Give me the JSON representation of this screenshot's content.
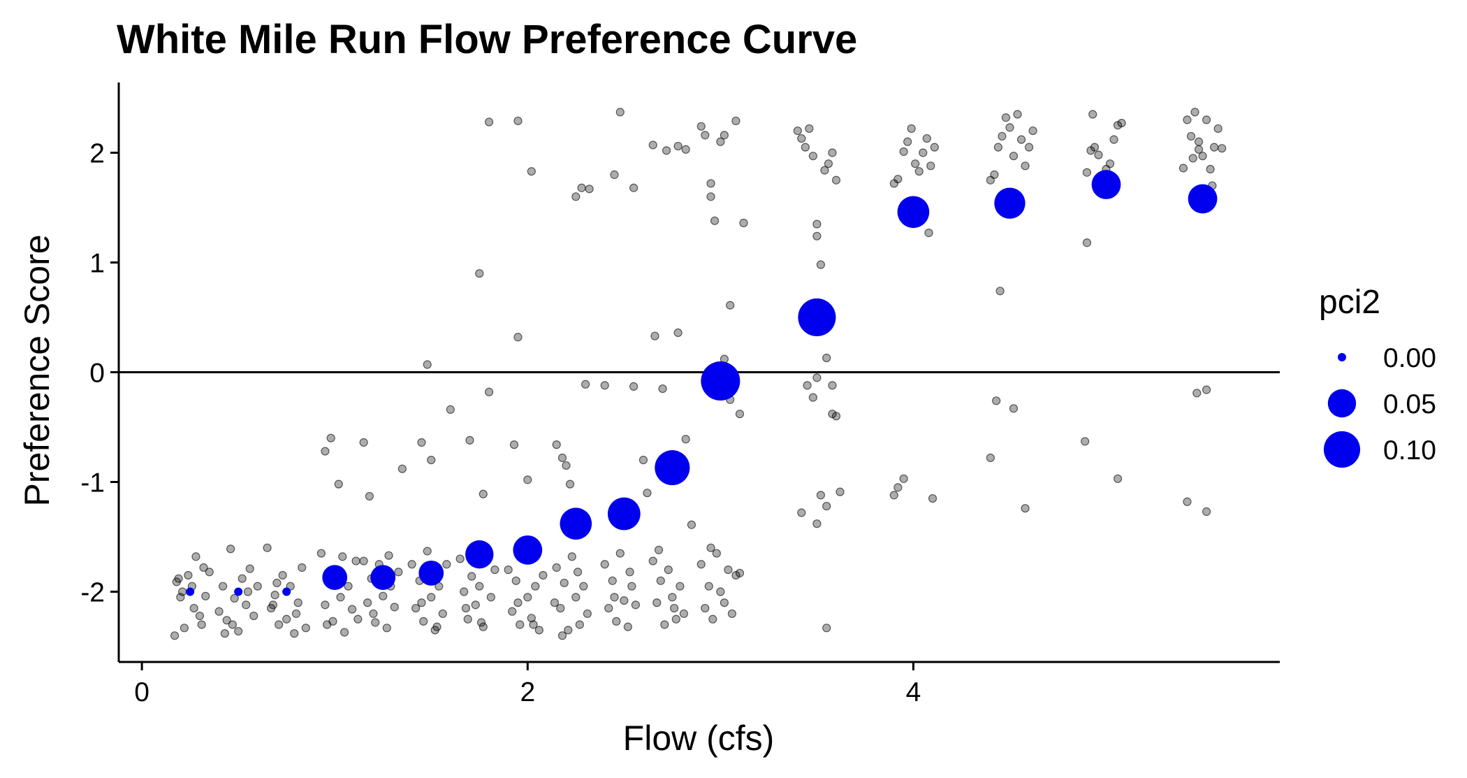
{
  "chart_data": {
    "type": "scatter",
    "title": "White Mile Run Flow Preference Curve",
    "xlabel": "Flow (cfs)",
    "ylabel": "Preference Score",
    "xlim": [
      -0.12,
      5.9
    ],
    "ylim": [
      -2.64,
      2.64
    ],
    "x_ticks": [
      0,
      2,
      4
    ],
    "y_ticks": [
      -2,
      -1,
      0,
      1,
      2
    ],
    "hline": 0,
    "grid": false,
    "legend": {
      "title": "pci2",
      "placement": "right",
      "entries": [
        {
          "label": "0.00",
          "value": 0.0
        },
        {
          "label": "0.05",
          "value": 0.05
        },
        {
          "label": "0.10",
          "value": 0.1
        }
      ]
    },
    "colors": {
      "summary": "#0000ee",
      "raw": "#000000",
      "axis": "#000000"
    },
    "summary_series": {
      "x": [
        0.25,
        0.5,
        0.75,
        1.0,
        1.25,
        1.5,
        1.75,
        2.0,
        2.25,
        2.5,
        2.75,
        3.0,
        3.5,
        4.0,
        4.5,
        5.0,
        5.5
      ],
      "y": [
        -2.0,
        -2.0,
        -2.0,
        -1.87,
        -1.87,
        -1.83,
        -1.66,
        -1.62,
        -1.38,
        -1.29,
        -0.87,
        -0.08,
        0.5,
        1.46,
        1.54,
        1.71,
        1.58
      ],
      "pci2": [
        0.0,
        0.0,
        0.0,
        0.035,
        0.035,
        0.035,
        0.05,
        0.055,
        0.07,
        0.075,
        0.09,
        0.12,
        0.11,
        0.07,
        0.065,
        0.055,
        0.055
      ]
    },
    "raw_series": {
      "points": [
        [
          0.18,
          -1.91
        ],
        [
          0.2,
          -2.05
        ],
        [
          0.17,
          -2.4
        ],
        [
          0.22,
          -2.33
        ],
        [
          0.24,
          -1.85
        ],
        [
          0.26,
          -1.95
        ],
        [
          0.28,
          -1.68
        ],
        [
          0.3,
          -2.22
        ],
        [
          0.32,
          -1.78
        ],
        [
          0.21,
          -2.0
        ],
        [
          0.27,
          -2.15
        ],
        [
          0.33,
          -2.04
        ],
        [
          0.19,
          -1.88
        ],
        [
          0.31,
          -2.3
        ],
        [
          0.35,
          -1.82
        ],
        [
          0.4,
          -2.18
        ],
        [
          0.42,
          -1.95
        ],
        [
          0.44,
          -2.26
        ],
        [
          0.46,
          -1.61
        ],
        [
          0.48,
          -2.06
        ],
        [
          0.5,
          -2.36
        ],
        [
          0.52,
          -1.88
        ],
        [
          0.54,
          -2.12
        ],
        [
          0.56,
          -1.79
        ],
        [
          0.58,
          -2.22
        ],
        [
          0.43,
          -2.38
        ],
        [
          0.55,
          -2.0
        ],
        [
          0.6,
          -1.95
        ],
        [
          0.47,
          -2.3
        ],
        [
          0.65,
          -1.6
        ],
        [
          0.67,
          -2.15
        ],
        [
          0.69,
          -2.03
        ],
        [
          0.71,
          -2.3
        ],
        [
          0.73,
          -1.85
        ],
        [
          0.75,
          -2.25
        ],
        [
          0.77,
          -1.95
        ],
        [
          0.79,
          -2.38
        ],
        [
          0.81,
          -2.1
        ],
        [
          0.83,
          -1.78
        ],
        [
          0.85,
          -2.33
        ],
        [
          0.7,
          -1.92
        ],
        [
          0.8,
          -2.2
        ],
        [
          0.68,
          -2.12
        ],
        [
          0.93,
          -1.65
        ],
        [
          0.95,
          -2.12
        ],
        [
          0.97,
          -1.9
        ],
        [
          0.99,
          -2.27
        ],
        [
          1.01,
          -1.8
        ],
        [
          1.03,
          -2.05
        ],
        [
          1.05,
          -2.37
        ],
        [
          1.07,
          -1.95
        ],
        [
          1.09,
          -2.16
        ],
        [
          1.11,
          -1.72
        ],
        [
          0.96,
          -2.3
        ],
        [
          1.04,
          -1.68
        ],
        [
          1.12,
          -2.25
        ],
        [
          1.15,
          -1.72
        ],
        [
          1.17,
          -2.1
        ],
        [
          1.19,
          -1.88
        ],
        [
          1.21,
          -2.28
        ],
        [
          1.23,
          -1.75
        ],
        [
          1.25,
          -2.04
        ],
        [
          1.27,
          -2.33
        ],
        [
          1.29,
          -1.95
        ],
        [
          1.31,
          -2.14
        ],
        [
          1.33,
          -1.82
        ],
        [
          1.2,
          -2.2
        ],
        [
          1.28,
          -1.67
        ],
        [
          1.4,
          -1.75
        ],
        [
          1.42,
          -2.15
        ],
        [
          1.44,
          -1.9
        ],
        [
          1.46,
          -2.27
        ],
        [
          1.48,
          -1.63
        ],
        [
          1.5,
          -2.05
        ],
        [
          1.52,
          -2.35
        ],
        [
          1.54,
          -1.95
        ],
        [
          1.56,
          -2.2
        ],
        [
          1.58,
          -1.75
        ],
        [
          1.45,
          -2.1
        ],
        [
          1.53,
          -2.32
        ],
        [
          1.65,
          -1.7
        ],
        [
          1.67,
          -2.0
        ],
        [
          1.69,
          -2.25
        ],
        [
          1.71,
          -1.86
        ],
        [
          1.73,
          -2.12
        ],
        [
          1.75,
          -1.95
        ],
        [
          1.77,
          -2.32
        ],
        [
          1.79,
          -1.65
        ],
        [
          1.81,
          -2.05
        ],
        [
          1.83,
          -1.8
        ],
        [
          1.68,
          -2.15
        ],
        [
          1.76,
          -2.28
        ],
        [
          1.9,
          -1.8
        ],
        [
          1.92,
          -2.18
        ],
        [
          1.94,
          -1.9
        ],
        [
          1.96,
          -2.3
        ],
        [
          1.98,
          -1.7
        ],
        [
          2.0,
          -2.05
        ],
        [
          2.02,
          -2.24
        ],
        [
          2.04,
          -1.95
        ],
        [
          2.06,
          -2.35
        ],
        [
          2.08,
          -1.85
        ],
        [
          1.95,
          -2.1
        ],
        [
          2.03,
          -2.3
        ],
        [
          2.15,
          -1.78
        ],
        [
          2.17,
          -2.15
        ],
        [
          2.19,
          -1.92
        ],
        [
          2.21,
          -2.35
        ],
        [
          2.23,
          -1.68
        ],
        [
          2.25,
          -2.05
        ],
        [
          2.27,
          -2.3
        ],
        [
          2.29,
          -1.95
        ],
        [
          2.31,
          -2.2
        ],
        [
          2.18,
          -2.4
        ],
        [
          2.26,
          -1.82
        ],
        [
          2.14,
          -2.1
        ],
        [
          2.4,
          -1.75
        ],
        [
          2.42,
          -2.15
        ],
        [
          2.44,
          -1.9
        ],
        [
          2.46,
          -2.27
        ],
        [
          2.48,
          -1.65
        ],
        [
          2.5,
          -2.08
        ],
        [
          2.52,
          -2.32
        ],
        [
          2.54,
          -1.95
        ],
        [
          2.56,
          -2.12
        ],
        [
          2.45,
          -2.05
        ],
        [
          2.53,
          -1.82
        ],
        [
          2.65,
          -1.72
        ],
        [
          2.67,
          -2.1
        ],
        [
          2.69,
          -1.9
        ],
        [
          2.71,
          -2.3
        ],
        [
          2.73,
          -1.8
        ],
        [
          2.75,
          -2.05
        ],
        [
          2.77,
          -2.25
        ],
        [
          2.79,
          -1.95
        ],
        [
          2.81,
          -2.2
        ],
        [
          2.68,
          -1.62
        ],
        [
          2.76,
          -2.15
        ],
        [
          2.9,
          -1.75
        ],
        [
          2.92,
          -2.15
        ],
        [
          2.94,
          -1.95
        ],
        [
          2.96,
          -2.25
        ],
        [
          2.98,
          -1.65
        ],
        [
          3.0,
          -2.0
        ],
        [
          3.02,
          -2.1
        ],
        [
          3.04,
          -1.8
        ],
        [
          3.06,
          -2.2
        ],
        [
          3.08,
          -1.85
        ],
        [
          2.95,
          -1.6
        ],
        [
          3.1,
          -1.83
        ],
        [
          0.95,
          -0.72
        ],
        [
          0.98,
          -0.6
        ],
        [
          1.02,
          -1.02
        ],
        [
          1.15,
          -0.64
        ],
        [
          1.18,
          -1.13
        ],
        [
          1.35,
          -0.88
        ],
        [
          1.45,
          -0.64
        ],
        [
          1.48,
          0.07
        ],
        [
          1.5,
          -0.8
        ],
        [
          1.6,
          -0.34
        ],
        [
          1.7,
          -0.62
        ],
        [
          1.77,
          -1.11
        ],
        [
          1.8,
          -0.18
        ],
        [
          1.75,
          0.9
        ],
        [
          1.8,
          2.28
        ],
        [
          1.95,
          2.29
        ],
        [
          1.95,
          0.32
        ],
        [
          1.93,
          -0.66
        ],
        [
          2.0,
          -0.98
        ],
        [
          2.02,
          1.83
        ],
        [
          2.15,
          -0.66
        ],
        [
          2.18,
          -0.78
        ],
        [
          2.2,
          -0.85
        ],
        [
          2.22,
          -1.02
        ],
        [
          2.25,
          1.6
        ],
        [
          2.28,
          1.68
        ],
        [
          2.32,
          1.67
        ],
        [
          2.3,
          -0.11
        ],
        [
          2.4,
          -0.12
        ],
        [
          2.45,
          1.8
        ],
        [
          2.48,
          2.37
        ],
        [
          2.55,
          1.68
        ],
        [
          2.55,
          -0.13
        ],
        [
          2.6,
          -0.8
        ],
        [
          2.62,
          -1.1
        ],
        [
          2.65,
          2.07
        ],
        [
          2.66,
          0.33
        ],
        [
          2.7,
          -0.15
        ],
        [
          2.72,
          2.02
        ],
        [
          2.78,
          2.06
        ],
        [
          2.78,
          0.36
        ],
        [
          2.82,
          2.03
        ],
        [
          2.82,
          -0.61
        ],
        [
          2.85,
          -1.39
        ],
        [
          2.9,
          2.24
        ],
        [
          2.92,
          2.16
        ],
        [
          2.95,
          1.72
        ],
        [
          2.95,
          1.6
        ],
        [
          2.97,
          1.38
        ],
        [
          3.0,
          2.1
        ],
        [
          3.02,
          2.16
        ],
        [
          3.05,
          0.61
        ],
        [
          3.08,
          2.29
        ],
        [
          3.12,
          1.36
        ],
        [
          3.1,
          -0.38
        ],
        [
          3.05,
          -0.25
        ],
        [
          3.02,
          0.12
        ],
        [
          2.98,
          0.05
        ],
        [
          3.4,
          2.2
        ],
        [
          3.42,
          2.13
        ],
        [
          3.44,
          2.05
        ],
        [
          3.46,
          2.22
        ],
        [
          3.48,
          1.97
        ],
        [
          3.5,
          1.35
        ],
        [
          3.5,
          1.24
        ],
        [
          3.52,
          0.98
        ],
        [
          3.54,
          1.84
        ],
        [
          3.56,
          1.9
        ],
        [
          3.58,
          2.0
        ],
        [
          3.6,
          1.75
        ],
        [
          3.55,
          0.13
        ],
        [
          3.5,
          -0.05
        ],
        [
          3.45,
          -0.12
        ],
        [
          3.48,
          -0.23
        ],
        [
          3.52,
          -1.12
        ],
        [
          3.55,
          -1.22
        ],
        [
          3.58,
          -0.38
        ],
        [
          3.6,
          -0.4
        ],
        [
          3.62,
          -1.09
        ],
        [
          3.42,
          -1.28
        ],
        [
          3.5,
          -1.38
        ],
        [
          3.55,
          -2.33
        ],
        [
          3.58,
          -0.12
        ],
        [
          3.9,
          1.72
        ],
        [
          3.92,
          1.76
        ],
        [
          3.95,
          2.01
        ],
        [
          3.97,
          2.1
        ],
        [
          3.99,
          2.22
        ],
        [
          4.01,
          1.9
        ],
        [
          4.03,
          1.83
        ],
        [
          4.05,
          2.0
        ],
        [
          4.07,
          2.13
        ],
        [
          4.09,
          1.88
        ],
        [
          4.11,
          2.05
        ],
        [
          4.08,
          1.27
        ],
        [
          3.96,
          1.38
        ],
        [
          3.92,
          -1.05
        ],
        [
          3.95,
          -0.97
        ],
        [
          3.9,
          -1.12
        ],
        [
          4.1,
          -1.15
        ],
        [
          4.4,
          1.75
        ],
        [
          4.42,
          1.8
        ],
        [
          4.44,
          2.05
        ],
        [
          4.46,
          2.15
        ],
        [
          4.48,
          2.32
        ],
        [
          4.5,
          2.23
        ],
        [
          4.52,
          1.97
        ],
        [
          4.54,
          2.35
        ],
        [
          4.56,
          2.12
        ],
        [
          4.58,
          1.88
        ],
        [
          4.6,
          2.05
        ],
        [
          4.62,
          2.2
        ],
        [
          4.45,
          0.74
        ],
        [
          4.43,
          -0.26
        ],
        [
          4.52,
          -0.33
        ],
        [
          4.4,
          -0.78
        ],
        [
          4.58,
          -1.24
        ],
        [
          4.9,
          1.82
        ],
        [
          4.92,
          2.02
        ],
        [
          4.94,
          2.05
        ],
        [
          4.96,
          1.98
        ],
        [
          4.98,
          1.65
        ],
        [
          5.0,
          1.85
        ],
        [
          5.02,
          1.9
        ],
        [
          5.04,
          2.12
        ],
        [
          5.06,
          2.25
        ],
        [
          5.08,
          2.27
        ],
        [
          4.93,
          2.35
        ],
        [
          4.9,
          1.18
        ],
        [
          4.89,
          -0.63
        ],
        [
          5.06,
          -0.97
        ],
        [
          5.4,
          1.86
        ],
        [
          5.42,
          2.3
        ],
        [
          5.44,
          2.15
        ],
        [
          5.46,
          2.37
        ],
        [
          5.48,
          2.1
        ],
        [
          5.5,
          1.97
        ],
        [
          5.52,
          2.3
        ],
        [
          5.54,
          1.85
        ],
        [
          5.56,
          2.05
        ],
        [
          5.58,
          2.22
        ],
        [
          5.6,
          2.04
        ],
        [
          5.45,
          1.95
        ],
        [
          5.48,
          2.03
        ],
        [
          5.55,
          1.7
        ],
        [
          5.52,
          -0.16
        ],
        [
          5.47,
          -0.19
        ],
        [
          5.42,
          -1.18
        ],
        [
          5.52,
          -1.27
        ]
      ]
    }
  }
}
